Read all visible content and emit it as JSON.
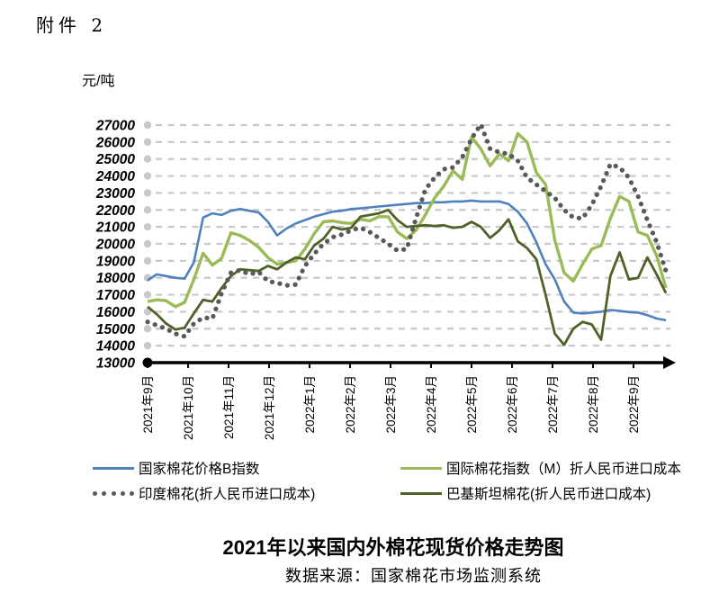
{
  "document": {
    "attachment_label": "附件 2",
    "unit_label": "元/吨",
    "chart_title": "2021年以来国内外棉花现货价格走势图",
    "source_note": "数据来源：国家棉花市场监测系统"
  },
  "chart_data": {
    "type": "line",
    "title": "2021年以来国内外棉花现货价格走势图",
    "y_unit": "元/吨",
    "ylim": [
      13000,
      27000
    ],
    "y_ticks": [
      13000,
      14000,
      15000,
      16000,
      17000,
      18000,
      19000,
      20000,
      21000,
      22000,
      23000,
      24000,
      25000,
      26000,
      27000
    ],
    "x_tick_labels": [
      "2021年9月",
      "2021年10月",
      "2021年11月",
      "2021年12月",
      "2022年1月",
      "2022年2月",
      "2022年3月",
      "2022年4月",
      "2022年5月",
      "2022年6月",
      "2022年7月",
      "2022年8月",
      "2022年9月"
    ],
    "grid": "horizontal-dashed",
    "legend_position": "bottom-two-columns",
    "points_per_series": 57,
    "series": [
      {
        "name": "国家棉花价格B指数",
        "color": "#4f81bd",
        "style": "solid",
        "stroke_width": 2.6,
        "values": [
          17850,
          18200,
          18100,
          18000,
          17950,
          18900,
          21550,
          21800,
          21700,
          21950,
          22050,
          21950,
          21850,
          21300,
          20500,
          20900,
          21200,
          21400,
          21600,
          21750,
          21900,
          21950,
          22050,
          22100,
          22150,
          22200,
          22250,
          22300,
          22350,
          22400,
          22400,
          22450,
          22450,
          22500,
          22500,
          22550,
          22500,
          22500,
          22500,
          22350,
          21900,
          21200,
          20100,
          18800,
          17900,
          16600,
          15950,
          15900,
          15950,
          16000,
          16100,
          16050,
          15980,
          15950,
          15800,
          15600,
          15500
        ]
      },
      {
        "name": "国际棉花指数（M）折人民币进口成本",
        "color": "#9bbb59",
        "style": "solid",
        "stroke_width": 3.4,
        "values": [
          16600,
          16700,
          16650,
          16300,
          16550,
          17900,
          19450,
          18750,
          19150,
          20650,
          20500,
          20200,
          19800,
          19200,
          18800,
          18900,
          19000,
          19700,
          20600,
          21300,
          21350,
          21250,
          21200,
          21450,
          21350,
          21600,
          21600,
          20700,
          20300,
          20800,
          21700,
          22700,
          23400,
          24300,
          23800,
          26300,
          25600,
          24600,
          25300,
          24900,
          26500,
          26000,
          24200,
          23500,
          20200,
          18300,
          17800,
          18800,
          19700,
          19900,
          21500,
          22800,
          22500,
          20700,
          20500,
          19300,
          17400
        ]
      },
      {
        "name": "印度棉花(折人民币进口成本)",
        "color": "#595959",
        "style": "dotted",
        "stroke_width": 5.2,
        "values": [
          15400,
          15200,
          15000,
          14700,
          14550,
          15300,
          15650,
          15600,
          17100,
          18300,
          18450,
          18200,
          18350,
          17800,
          17700,
          17550,
          17600,
          18700,
          19400,
          20000,
          20400,
          20550,
          20800,
          20950,
          20700,
          20350,
          20000,
          19600,
          19700,
          21500,
          23200,
          23900,
          24400,
          24500,
          25100,
          26200,
          27050,
          25600,
          25400,
          25300,
          24900,
          23900,
          23500,
          23100,
          22700,
          22000,
          21550,
          21500,
          22300,
          23400,
          24700,
          24500,
          23900,
          22800,
          21400,
          20100,
          18400
        ]
      },
      {
        "name": "巴基斯坦棉花(折人民币进口成本)",
        "color": "#4f6228",
        "style": "solid",
        "stroke_width": 2.8,
        "values": [
          16300,
          15850,
          15300,
          14950,
          15050,
          15900,
          16700,
          16600,
          17400,
          18100,
          18500,
          18450,
          18400,
          18700,
          18500,
          18900,
          19200,
          19100,
          19900,
          20300,
          21000,
          20850,
          20950,
          21600,
          21700,
          21800,
          22000,
          21400,
          21000,
          21050,
          21100,
          21050,
          21100,
          20950,
          21000,
          21300,
          21000,
          20350,
          20800,
          21450,
          20150,
          19750,
          19100,
          17000,
          14700,
          14050,
          15000,
          15400,
          15250,
          14350,
          18100,
          19500,
          17900,
          18000,
          19200,
          18200,
          17100
        ]
      }
    ]
  }
}
